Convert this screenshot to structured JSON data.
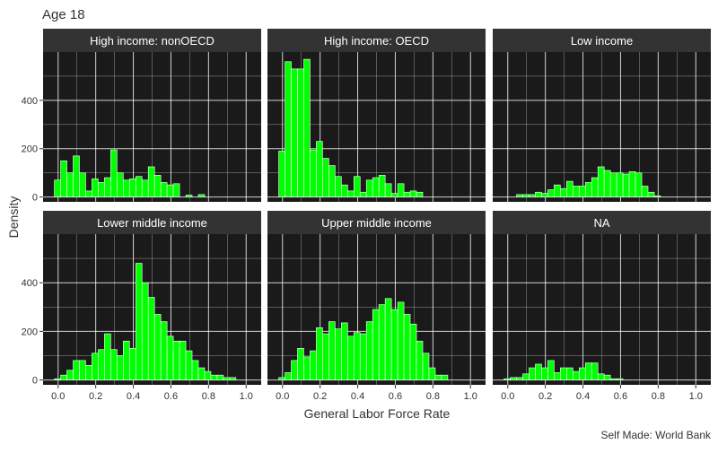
{
  "colors": {
    "panel_bg": "#1a1a1a",
    "strip_bg": "#333333",
    "strip_text": "#ffffff",
    "grid": "#ffffff",
    "bar_fill": "#00ff00",
    "bar_outline": "#ffffff",
    "axis_text": "#333333"
  },
  "chart_data": {
    "type": "bar",
    "subtype": "faceted-histogram",
    "title": "Age 18",
    "xlabel": "General Labor Force Rate",
    "ylabel": "Density",
    "caption": "Self Made: World Bank",
    "xlim": [
      -0.08,
      1.08
    ],
    "ylim": [
      -20,
      600
    ],
    "x_ticks": [
      0.0,
      0.2,
      0.4,
      0.6,
      0.8,
      1.0
    ],
    "x_tick_labels": [
      "0.0",
      "0.2",
      "0.4",
      "0.6",
      "0.8",
      "1.0"
    ],
    "y_ticks": [
      0,
      200,
      400
    ],
    "y_tick_labels": [
      "0",
      "200",
      "400"
    ],
    "bin_start": -0.02,
    "bin_width": 0.0333,
    "grid": true,
    "facet_layout": "2 rows x 3 columns",
    "panels": [
      {
        "name": "High income: nonOECD",
        "values": [
          70,
          150,
          100,
          170,
          100,
          25,
          75,
          60,
          80,
          195,
          100,
          70,
          75,
          85,
          70,
          125,
          90,
          60,
          50,
          55,
          0,
          8,
          0,
          10
        ]
      },
      {
        "name": "High income: OECD",
        "values": [
          190,
          560,
          530,
          530,
          570,
          195,
          230,
          160,
          130,
          85,
          50,
          25,
          85,
          20,
          70,
          80,
          90,
          55,
          15,
          55,
          20,
          25,
          20
        ]
      },
      {
        "name": "Low income",
        "values": [
          0,
          0,
          10,
          10,
          10,
          20,
          15,
          30,
          50,
          35,
          65,
          45,
          45,
          60,
          80,
          125,
          110,
          100,
          100,
          95,
          105,
          100,
          45,
          20,
          5
        ]
      },
      {
        "name": "Lower middle income",
        "values": [
          5,
          20,
          40,
          80,
          80,
          60,
          110,
          125,
          190,
          125,
          100,
          160,
          130,
          480,
          400,
          340,
          270,
          240,
          180,
          160,
          160,
          120,
          80,
          50,
          35,
          20,
          20,
          10,
          10
        ]
      },
      {
        "name": "Upper middle income",
        "values": [
          10,
          30,
          80,
          130,
          95,
          120,
          215,
          190,
          240,
          210,
          235,
          180,
          195,
          190,
          240,
          290,
          310,
          335,
          290,
          320,
          270,
          230,
          160,
          110,
          50,
          20,
          20
        ]
      },
      {
        "name": "NA",
        "values": [
          5,
          10,
          10,
          25,
          50,
          65,
          50,
          80,
          30,
          50,
          50,
          35,
          50,
          70,
          70,
          25,
          20,
          5,
          5
        ]
      }
    ]
  }
}
